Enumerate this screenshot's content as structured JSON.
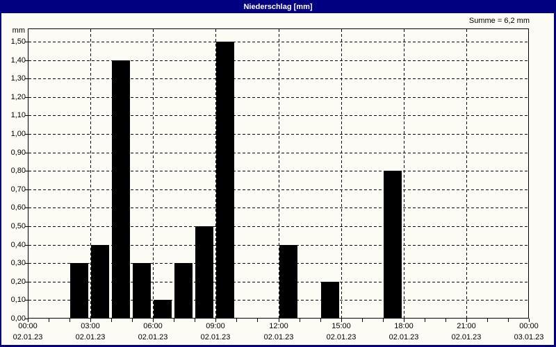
{
  "window": {
    "title": "Niederschlag [mm]",
    "titlebar_color": "#000080",
    "background_color": "#FCFCF5"
  },
  "summary_label": "Summe = 6,2 mm",
  "chart_data": {
    "type": "bar",
    "title": "Niederschlag [mm]",
    "unit_label": "mm",
    "bar_color": "#000000",
    "grid": "dashed",
    "legend_position": "none",
    "total_label": "Summe = 6,2 mm",
    "x_hours": [
      2,
      3,
      4,
      5,
      6,
      7,
      8,
      9,
      12,
      14,
      17
    ],
    "values": [
      0.3,
      0.4,
      1.4,
      0.3,
      0.1,
      0.3,
      0.5,
      1.5,
      0.4,
      0.2,
      0.8
    ],
    "x_axis": {
      "range_hours": [
        0,
        24
      ],
      "minor_tick_every_hours": 1,
      "major_grid_every_hours": 3,
      "time_labels": [
        "00:00",
        "03:00",
        "06:00",
        "09:00",
        "12:00",
        "15:00",
        "18:00",
        "21:00",
        "00:00"
      ],
      "date_labels": [
        "02.01.23",
        "02.01.23",
        "02.01.23",
        "02.01.23",
        "02.01.23",
        "02.01.23",
        "02.01.23",
        "02.01.23",
        "03.01.23"
      ]
    },
    "y_axis": {
      "min": 0,
      "max": 1.5,
      "step": 0.1,
      "tick_labels": [
        "0,00",
        "0,10",
        "0,20",
        "0,30",
        "0,40",
        "0,50",
        "0,60",
        "0,70",
        "0,80",
        "0,90",
        "1,00",
        "1,10",
        "1,20",
        "1,30",
        "1,40",
        "1,50"
      ]
    }
  }
}
